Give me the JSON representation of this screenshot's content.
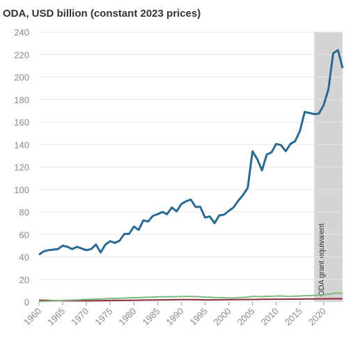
{
  "chart_data": {
    "type": "line",
    "title": "ODA, USD billion (constant 2023 prices)",
    "x": [
      1960,
      1961,
      1962,
      1963,
      1964,
      1965,
      1966,
      1967,
      1968,
      1969,
      1970,
      1971,
      1972,
      1973,
      1974,
      1975,
      1976,
      1977,
      1978,
      1979,
      1980,
      1981,
      1982,
      1983,
      1984,
      1985,
      1986,
      1987,
      1988,
      1989,
      1990,
      1991,
      1992,
      1993,
      1994,
      1995,
      1996,
      1997,
      1998,
      1999,
      2000,
      2001,
      2002,
      2003,
      2004,
      2005,
      2006,
      2007,
      2008,
      2009,
      2010,
      2011,
      2012,
      2013,
      2014,
      2015,
      2016,
      2017,
      2018,
      2019,
      2020,
      2021,
      2022,
      2023,
      2024
    ],
    "series": [
      {
        "color": "#2a6a92",
        "values": [
          42,
          45,
          46,
          46.5,
          47,
          50,
          49,
          47,
          49,
          47.5,
          46,
          47,
          51,
          44,
          51,
          54,
          52.5,
          54.5,
          60.5,
          60.5,
          67,
          64,
          72.5,
          71.5,
          76.5,
          78,
          80,
          78,
          84,
          80.5,
          87,
          89.5,
          91,
          84.5,
          84.5,
          75,
          76,
          70,
          77,
          77.5,
          81,
          84,
          90,
          95,
          101.5,
          134,
          127,
          117,
          131,
          133,
          140.5,
          139.5,
          134,
          140.5,
          143,
          152,
          169,
          168,
          167,
          167.5,
          175,
          189,
          221,
          224,
          208
        ]
      },
      {
        "color": "#7fb77e",
        "values": [
          0.5,
          0.6,
          0.8,
          1,
          1.2,
          1.4,
          1.5,
          1.6,
          1.8,
          2,
          2.2,
          2.3,
          2.5,
          2.6,
          2.8,
          3,
          3,
          3.2,
          3.4,
          3.6,
          3.8,
          3.8,
          4,
          4.2,
          4.3,
          4.5,
          4.6,
          4.6,
          4.7,
          4.6,
          4.8,
          4.8,
          4.9,
          4.7,
          4.6,
          4.2,
          4.2,
          3.8,
          3.9,
          3.8,
          3.6,
          3.5,
          3.8,
          4,
          4.2,
          5,
          4.8,
          4.7,
          5,
          5,
          5.2,
          5.3,
          5,
          5,
          5.1,
          5.2,
          5.5,
          5.6,
          5.8,
          6,
          6.4,
          6.8,
          7.5,
          8,
          7.5
        ]
      },
      {
        "color": "#8b2a3a",
        "values": [
          1.5,
          1.4,
          1.3,
          1.2,
          1.2,
          1.1,
          1,
          1,
          1,
          1,
          1,
          1,
          1.1,
          1.1,
          1.2,
          1.2,
          1.3,
          1.3,
          1.4,
          1.4,
          1.5,
          1.5,
          1.6,
          1.6,
          1.7,
          1.7,
          1.8,
          1.8,
          1.9,
          1.9,
          2,
          2,
          2,
          1.9,
          1.9,
          1.8,
          1.8,
          1.8,
          1.8,
          1.9,
          1.9,
          2,
          2,
          2.1,
          2.1,
          2.2,
          2.2,
          2.3,
          2.3,
          2.4,
          2.4,
          2.4,
          2.4,
          2.5,
          2.5,
          2.5,
          2.6,
          2.6,
          2.6,
          2.7,
          2.7,
          2.8,
          2.8,
          2.9,
          2.8
        ]
      }
    ],
    "xlim": [
      1960,
      2024
    ],
    "xticks": [
      1960,
      1965,
      1970,
      1975,
      1980,
      1985,
      1990,
      1995,
      2000,
      2005,
      2010,
      2015,
      2020
    ],
    "ylim": [
      0,
      240
    ],
    "yticks": [
      0,
      20,
      40,
      60,
      80,
      100,
      120,
      140,
      160,
      180,
      200,
      220,
      240
    ],
    "grid": true,
    "shaded": [
      2018,
      2024
    ],
    "shaded_label": "ODA grant equivalent"
  }
}
